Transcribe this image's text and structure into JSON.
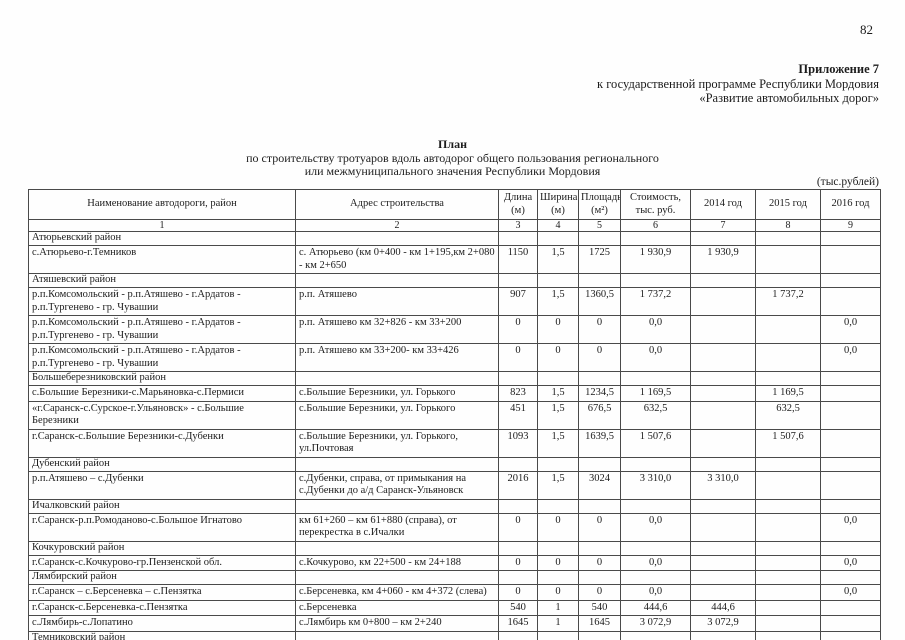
{
  "page": {
    "number": "82",
    "appendix": {
      "title": "Приложение 7",
      "line1": "к государственной программе Республики Мордовия",
      "line2": "«Развитие автомобильных дорог»"
    },
    "title": {
      "line1": "План",
      "line2": "по строительству тротуаров вдоль автодорог общего пользования регионального",
      "line3": "или межмуниципального значения Республики Мордовия"
    },
    "units_note": "(тыс.рублей)"
  },
  "table": {
    "columns": [
      {
        "label": "Наименование автодороги, район",
        "num": "1"
      },
      {
        "label": "Адрес строительства",
        "num": "2"
      },
      {
        "label": "Длина (м)",
        "num": "3"
      },
      {
        "label": "Ширина (м)",
        "num": "4"
      },
      {
        "label": "Площадь (м²)",
        "num": "5"
      },
      {
        "label": "Стоимость, тыс. руб.",
        "num": "6"
      },
      {
        "label": "2014 год",
        "num": "7"
      },
      {
        "label": "2015 год",
        "num": "8"
      },
      {
        "label": "2016 год",
        "num": "9"
      }
    ],
    "rows": [
      {
        "type": "section",
        "name": "Атюрьевский район"
      },
      {
        "type": "data",
        "cells": [
          "с.Атюрьево-г.Темников",
          "с. Атюрьево (км 0+400 - км 1+195,км 2+080 - км 2+650",
          "1150",
          "1,5",
          "1725",
          "1 930,9",
          "1 930,9",
          "",
          ""
        ]
      },
      {
        "type": "section",
        "name": "Атяшевский район"
      },
      {
        "type": "data",
        "cells": [
          "р.п.Комсомольский - р.п.Атяшево - г.Ардатов - р.п.Тургенево - гр. Чувашии",
          "р.п. Атяшево",
          "907",
          "1,5",
          "1360,5",
          "1 737,2",
          "",
          "1 737,2",
          ""
        ]
      },
      {
        "type": "data",
        "cells": [
          "р.п.Комсомольский - р.п.Атяшево - г.Ардатов - р.п.Тургенево - гр. Чувашии",
          "р.п. Атяшево км 32+826 - км 33+200",
          "0",
          "0",
          "0",
          "0,0",
          "",
          "",
          "0,0"
        ]
      },
      {
        "type": "data",
        "cells": [
          "р.п.Комсомольский - р.п.Атяшево - г.Ардатов - р.п.Тургенево - гр. Чувашии",
          "р.п. Атяшево км 33+200- км 33+426",
          "0",
          "0",
          "0",
          "0,0",
          "",
          "",
          "0,0"
        ]
      },
      {
        "type": "section",
        "name": "Большеберезниковский район"
      },
      {
        "type": "data",
        "cells": [
          "с.Большие Березники-с.Марьяновка-с.Пермиси",
          "с.Большие Березники, ул. Горького",
          "823",
          "1,5",
          "1234,5",
          "1 169,5",
          "",
          "1 169,5",
          ""
        ]
      },
      {
        "type": "data",
        "cells": [
          "«г.Саранск-с.Сурское-г.Ульяновск» - с.Большие Березники",
          "с.Большие Березники, ул. Горького",
          "451",
          "1,5",
          "676,5",
          "632,5",
          "",
          "632,5",
          ""
        ]
      },
      {
        "type": "data",
        "cells": [
          "г.Саранск-с.Большие Березники-с.Дубенки",
          "с.Большие Березники, ул. Горького, ул.Почтовая",
          "1093",
          "1,5",
          "1639,5",
          "1 507,6",
          "",
          "1 507,6",
          ""
        ]
      },
      {
        "type": "section",
        "name": "Дубенский район"
      },
      {
        "type": "data",
        "cells": [
          "р.п.Атяшево – с.Дубенки",
          "с.Дубенки, справа, от примыкания на с.Дубенки до а/д Саранск-Ульяновск",
          "2016",
          "1,5",
          "3024",
          "3 310,0",
          "3 310,0",
          "",
          ""
        ]
      },
      {
        "type": "section",
        "name": "Ичалковский район"
      },
      {
        "type": "data",
        "cells": [
          "г.Саранск-р.п.Ромоданово-с.Большое Игнатово",
          "км 61+260 – км 61+880 (справа), от перекрестка в с.Ичалки",
          "0",
          "0",
          "0",
          "0,0",
          "",
          "",
          "0,0"
        ]
      },
      {
        "type": "section",
        "name": "Кочкуровский район"
      },
      {
        "type": "data",
        "cells": [
          "г.Саранск-с.Кочкурово-гр.Пензенской обл.",
          "с.Кочкурово, км 22+500 - км 24+188",
          "0",
          "0",
          "0",
          "0,0",
          "",
          "",
          "0,0"
        ]
      },
      {
        "type": "section",
        "name": "Лямбирский район"
      },
      {
        "type": "data",
        "cells": [
          "г.Саранск – с.Берсеневка – с.Пензятка",
          "с.Берсеневка, км 4+060 - км 4+372 (слева)",
          "0",
          "0",
          "0",
          "0,0",
          "",
          "",
          "0,0"
        ]
      },
      {
        "type": "data",
        "cells": [
          "г.Саранск-с.Берсеневка-с.Пензятка",
          "с.Берсеневка",
          "540",
          "1",
          "540",
          "444,6",
          "444,6",
          "",
          ""
        ]
      },
      {
        "type": "data",
        "cells": [
          "с.Лямбирь-с.Лопатино",
          "с.Лямбирь км 0+800 – км 2+240",
          "1645",
          "1",
          "1645",
          "3 072,9",
          "3 072,9",
          "",
          ""
        ]
      },
      {
        "type": "section",
        "name": "Темниковский район"
      }
    ]
  }
}
